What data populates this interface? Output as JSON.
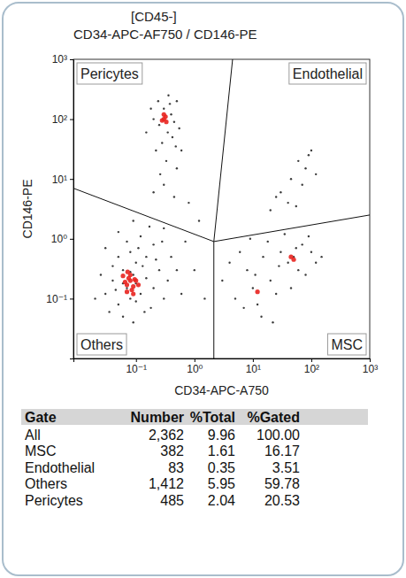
{
  "chart_data": {
    "type": "scatter",
    "title": "[CD45-]",
    "subtitle": "CD34-APC-AF750 / CD146-PE",
    "x_label": "CD34-APC-A750",
    "y_label": "CD146-PE",
    "log": true,
    "xlim": [
      0.0085,
      1000
    ],
    "ylim": [
      0.01,
      1000
    ],
    "xticks": [
      {
        "value": 0.1,
        "label": "10⁻¹"
      },
      {
        "value": 1,
        "label": "10⁰"
      },
      {
        "value": 10,
        "label": "10¹"
      },
      {
        "value": 100,
        "label": "10²"
      },
      {
        "value": 1000,
        "label": "10³"
      }
    ],
    "yticks": [
      {
        "value": 0.1,
        "label": "10⁻¹"
      },
      {
        "value": 1,
        "label": "10⁰"
      },
      {
        "value": 10,
        "label": "10¹"
      },
      {
        "value": 100,
        "label": "10²"
      },
      {
        "value": 1000,
        "label": "10³"
      }
    ],
    "series": [
      {
        "color": "#1a1a1a",
        "x": [
          0.03,
          0.04,
          0.05,
          0.06,
          0.07,
          0.08,
          0.09,
          0.1,
          0.12,
          0.15,
          0.05,
          0.08,
          0.1,
          0.13,
          0.2,
          0.25,
          0.3,
          0.18,
          0.06,
          0.04,
          0.03,
          0.07,
          0.12,
          0.2,
          0.15,
          0.035,
          0.025,
          0.09,
          0.14,
          0.22,
          0.35,
          0.4,
          0.11,
          0.05,
          0.17,
          0.28,
          0.06,
          0.08,
          0.1,
          0.045,
          0.02,
          0.3,
          0.5,
          0.6,
          0.09,
          0.2,
          0.25,
          0.3,
          0.35,
          0.4,
          0.45,
          0.5,
          0.28,
          0.22,
          0.18,
          0.33,
          0.42,
          0.55,
          0.38,
          0.26,
          0.3,
          0.45,
          0.2,
          0.5,
          0.6,
          0.15,
          0.36,
          0.24,
          0.48,
          3,
          5,
          8,
          10,
          12,
          15,
          20,
          25,
          30,
          40,
          50,
          60,
          70,
          80,
          100,
          120,
          6,
          9,
          14,
          18,
          35,
          45,
          4,
          7,
          11,
          28,
          55,
          90,
          150,
          22,
          20,
          30,
          45,
          60,
          80,
          100,
          40,
          70,
          120,
          25,
          55,
          90,
          1,
          1.5,
          0.8,
          1.2,
          0.7
        ],
        "values": [
          0.12,
          0.2,
          0.08,
          0.3,
          0.15,
          0.1,
          0.25,
          0.18,
          0.12,
          0.22,
          0.5,
          0.6,
          0.4,
          0.35,
          0.15,
          0.3,
          0.1,
          0.07,
          0.05,
          0.35,
          0.7,
          0.9,
          1.1,
          0.8,
          0.5,
          0.06,
          0.25,
          0.04,
          0.06,
          0.45,
          0.2,
          0.5,
          0.7,
          1.3,
          1.6,
          0.9,
          0.18,
          0.28,
          0.09,
          0.14,
          0.1,
          1.5,
          0.3,
          0.12,
          2.0,
          100,
          80,
          150,
          60,
          120,
          90,
          200,
          40,
          30,
          150,
          20,
          50,
          70,
          180,
          12,
          8,
          5,
          6,
          15,
          30,
          60,
          250,
          200,
          35,
          0.2,
          0.1,
          0.3,
          0.15,
          0.08,
          0.5,
          0.2,
          0.12,
          0.6,
          0.4,
          0.5,
          0.3,
          0.8,
          0.25,
          0.6,
          0.4,
          0.6,
          1.0,
          0.05,
          0.9,
          1.2,
          0.15,
          0.4,
          0.07,
          0.25,
          0.35,
          0.7,
          1.1,
          0.5,
          0.04,
          3,
          6,
          10,
          20,
          15,
          30,
          4,
          8,
          12,
          5,
          3.5,
          25,
          0.3,
          0.1,
          4,
          2,
          0.9
        ]
      },
      {
        "color": "#e8231f",
        "x": [
          0.07,
          0.08,
          0.09,
          0.075,
          0.065,
          0.085,
          0.095,
          0.07,
          0.1,
          0.06,
          0.08,
          0.09,
          0.072,
          0.11,
          0.3,
          0.32,
          0.28,
          0.33,
          0.3,
          12,
          45,
          50
        ],
        "values": [
          0.17,
          0.2,
          0.16,
          0.22,
          0.19,
          0.14,
          0.21,
          0.13,
          0.2,
          0.24,
          0.25,
          0.12,
          0.28,
          0.17,
          100,
          110,
          95,
          90,
          120,
          0.13,
          0.5,
          0.45
        ]
      }
    ],
    "gate_lines": [
      {
        "x": [
          0.0085,
          2.15
        ],
        "y": [
          7,
          0.9
        ]
      },
      {
        "x": [
          2.15,
          2.15
        ],
        "y": [
          0.9,
          0.01
        ]
      },
      {
        "x": [
          2.15,
          4.5
        ],
        "y": [
          0.9,
          1000
        ]
      },
      {
        "x": [
          2.15,
          1000
        ],
        "y": [
          0.9,
          2.5
        ]
      }
    ],
    "annotations": [
      "Pericytes",
      "Endothelial",
      "Others",
      "MSC"
    ]
  },
  "table": {
    "columns": [
      "Gate",
      "Number",
      "%Total",
      "%Gated"
    ],
    "rows": [
      [
        "All",
        "2,362",
        "9.96",
        "100.00"
      ],
      [
        "MSC",
        "382",
        "1.61",
        "16.17"
      ],
      [
        "Endothelial",
        "83",
        "0.35",
        "3.51"
      ],
      [
        "Others",
        "1,412",
        "5.95",
        "59.78"
      ],
      [
        "Pericytes",
        "485",
        "2.04",
        "20.53"
      ]
    ]
  }
}
